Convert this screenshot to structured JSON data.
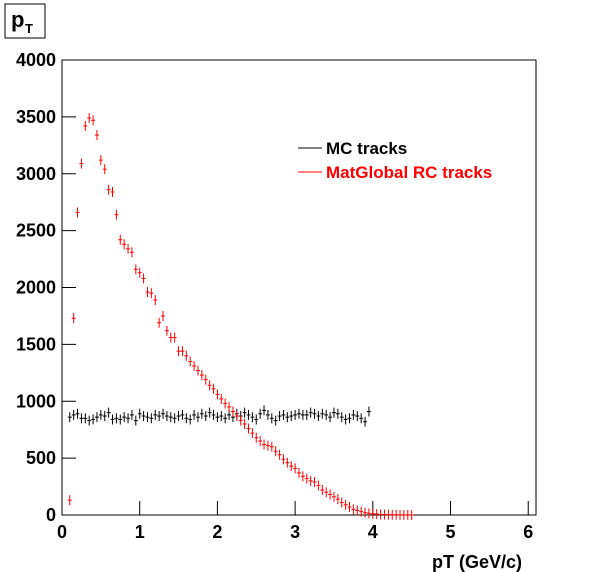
{
  "chart_data": {
    "type": "scatter",
    "title": "p",
    "title_subscript": "T",
    "x_label": "pT (GeV/c)",
    "xlim": [
      0,
      6.1
    ],
    "xticks": [
      0,
      1,
      2,
      3,
      4,
      5,
      6
    ],
    "ylim": [
      0,
      4000
    ],
    "yticks": [
      0,
      500,
      1000,
      1500,
      2000,
      2500,
      3000,
      3500,
      4000
    ],
    "x": [
      0.1,
      0.15,
      0.2,
      0.25,
      0.3,
      0.35,
      0.4,
      0.45,
      0.5,
      0.55,
      0.6,
      0.65,
      0.7,
      0.75,
      0.8,
      0.85,
      0.9,
      0.95,
      1.0,
      1.05,
      1.1,
      1.15,
      1.2,
      1.25,
      1.3,
      1.35,
      1.4,
      1.45,
      1.5,
      1.55,
      1.6,
      1.65,
      1.7,
      1.75,
      1.8,
      1.85,
      1.9,
      1.95,
      2.0,
      2.05,
      2.1,
      2.15,
      2.2,
      2.25,
      2.3,
      2.35,
      2.4,
      2.45,
      2.5,
      2.55,
      2.6,
      2.65,
      2.7,
      2.75,
      2.8,
      2.85,
      2.9,
      2.95,
      3.0,
      3.05,
      3.1,
      3.15,
      3.2,
      3.25,
      3.3,
      3.35,
      3.4,
      3.45,
      3.5,
      3.55,
      3.6,
      3.65,
      3.7,
      3.75,
      3.8,
      3.85,
      3.9,
      3.95,
      4.0,
      4.05,
      4.1,
      4.15,
      4.2,
      4.25,
      4.3,
      4.35,
      4.4,
      4.45,
      4.5
    ],
    "series": [
      {
        "name": "MC tracks",
        "color": "#000000",
        "values": [
          860,
          880,
          890,
          850,
          850,
          830,
          840,
          860,
          880,
          870,
          900,
          840,
          850,
          840,
          860,
          850,
          880,
          830,
          890,
          870,
          860,
          850,
          880,
          870,
          890,
          870,
          860,
          850,
          870,
          880,
          850,
          840,
          880,
          860,
          890,
          870,
          900,
          880,
          860,
          870,
          850,
          880,
          860,
          890,
          870,
          900,
          880,
          860,
          840,
          890,
          920,
          880,
          850,
          830,
          870,
          880,
          860,
          870,
          880,
          890,
          880,
          880,
          900,
          890,
          870,
          890,
          880,
          860,
          900,
          890,
          860,
          840,
          850,
          880,
          870,
          850,
          820,
          910,
          null,
          null,
          null,
          null,
          null,
          null,
          null,
          null,
          null,
          null,
          null
        ]
      },
      {
        "name": "MatGlobal RC tracks",
        "color": "#ff0000",
        "values": [
          130,
          1730,
          2660,
          3090,
          3420,
          3490,
          3470,
          3340,
          3120,
          3040,
          2860,
          2840,
          2640,
          2420,
          2380,
          2340,
          2310,
          2160,
          2130,
          2080,
          1960,
          1950,
          1890,
          1690,
          1750,
          1620,
          1560,
          1560,
          1440,
          1440,
          1400,
          1350,
          1310,
          1270,
          1230,
          1190,
          1140,
          1110,
          1060,
          1020,
          980,
          950,
          910,
          870,
          830,
          800,
          760,
          720,
          680,
          650,
          620,
          610,
          600,
          560,
          530,
          490,
          460,
          430,
          410,
          370,
          340,
          320,
          300,
          290,
          260,
          220,
          200,
          180,
          160,
          140,
          110,
          90,
          70,
          50,
          40,
          30,
          20,
          15,
          10,
          8,
          5,
          4,
          3,
          2,
          2,
          1,
          1,
          1,
          0
        ]
      }
    ]
  }
}
